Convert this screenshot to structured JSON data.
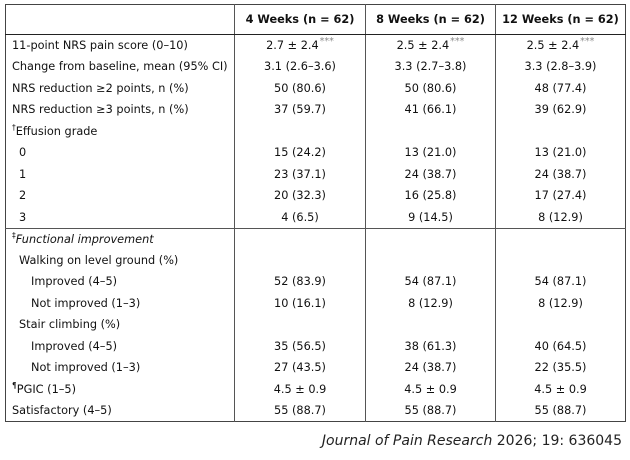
{
  "table": {
    "headers": [
      "",
      "4 Weeks (n = 62)",
      "8 Weeks (n = 62)",
      "12 Weeks (n = 62)"
    ],
    "rows": [
      {
        "label": "11-point NRS pain score (0–10)",
        "marker": "",
        "indent": 0,
        "values": [
          "2.7 ± 2.4",
          "2.5 ± 2.4",
          "2.5 ± 2.4"
        ],
        "stars": "***"
      },
      {
        "label": "Change from baseline, mean (95% CI)",
        "marker": "",
        "indent": 0,
        "values": [
          "3.1 (2.6–3.6)",
          "3.3 (2.7–3.8)",
          "3.3 (2.8–3.9)"
        ]
      },
      {
        "label": "NRS reduction ≥2 points, n (%)",
        "marker": "",
        "indent": 0,
        "values": [
          "50 (80.6)",
          "50 (80.6)",
          "48 (77.4)"
        ]
      },
      {
        "label": "NRS reduction ≥3 points, n (%)",
        "marker": "",
        "indent": 0,
        "values": [
          "37 (59.7)",
          "41 (66.1)",
          "39 (62.9)"
        ]
      },
      {
        "label": "Effusion grade",
        "marker": "†",
        "indent": 0,
        "values": [
          "",
          "",
          ""
        ]
      },
      {
        "label": "0",
        "marker": "",
        "indent": 1,
        "values": [
          "15 (24.2)",
          "13 (21.0)",
          "13 (21.0)"
        ]
      },
      {
        "label": "1",
        "marker": "",
        "indent": 1,
        "values": [
          "23 (37.1)",
          "24 (38.7)",
          "24 (38.7)"
        ]
      },
      {
        "label": "2",
        "marker": "",
        "indent": 1,
        "values": [
          "20 (32.3)",
          "16 (25.8)",
          "17 (27.4)"
        ]
      },
      {
        "label": "3",
        "marker": "",
        "indent": 1,
        "values": [
          "4 (6.5)",
          "9 (14.5)",
          "8 (12.9)"
        ]
      },
      {
        "label": "Functional improvement",
        "marker": "‡",
        "indent": 0,
        "italic": true,
        "values": [
          "",
          "",
          ""
        ]
      },
      {
        "label": "Walking on level ground (%)",
        "marker": "",
        "indent": 1,
        "values": [
          "",
          "",
          ""
        ]
      },
      {
        "label": "Improved (4–5)",
        "marker": "",
        "indent": 2,
        "values": [
          "52 (83.9)",
          "54 (87.1)",
          "54 (87.1)"
        ]
      },
      {
        "label": "Not improved (1–3)",
        "marker": "",
        "indent": 2,
        "values": [
          "10 (16.1)",
          "8 (12.9)",
          "8 (12.9)"
        ]
      },
      {
        "label": "Stair climbing (%)",
        "marker": "",
        "indent": 1,
        "values": [
          "",
          "",
          ""
        ]
      },
      {
        "label": "Improved (4–5)",
        "marker": "",
        "indent": 2,
        "values": [
          "35 (56.5)",
          "38 (61.3)",
          "40 (64.5)"
        ]
      },
      {
        "label": "Not improved (1–3)",
        "marker": "",
        "indent": 2,
        "values": [
          "27 (43.5)",
          "24 (38.7)",
          "22 (35.5)"
        ]
      },
      {
        "label": "PGIC (1–5)",
        "marker": "¶",
        "indent": 0,
        "values": [
          "4.5 ± 0.9",
          "4.5 ± 0.9",
          "4.5 ± 0.9"
        ]
      },
      {
        "label": "Satisfactory (4–5)",
        "marker": "",
        "indent": 0,
        "values": [
          "55 (88.7)",
          "55 (88.7)",
          "55 (88.7)"
        ]
      }
    ]
  },
  "citation": {
    "journal": "Journal of Pain Research",
    "details": " 2026; 19: 636045"
  }
}
